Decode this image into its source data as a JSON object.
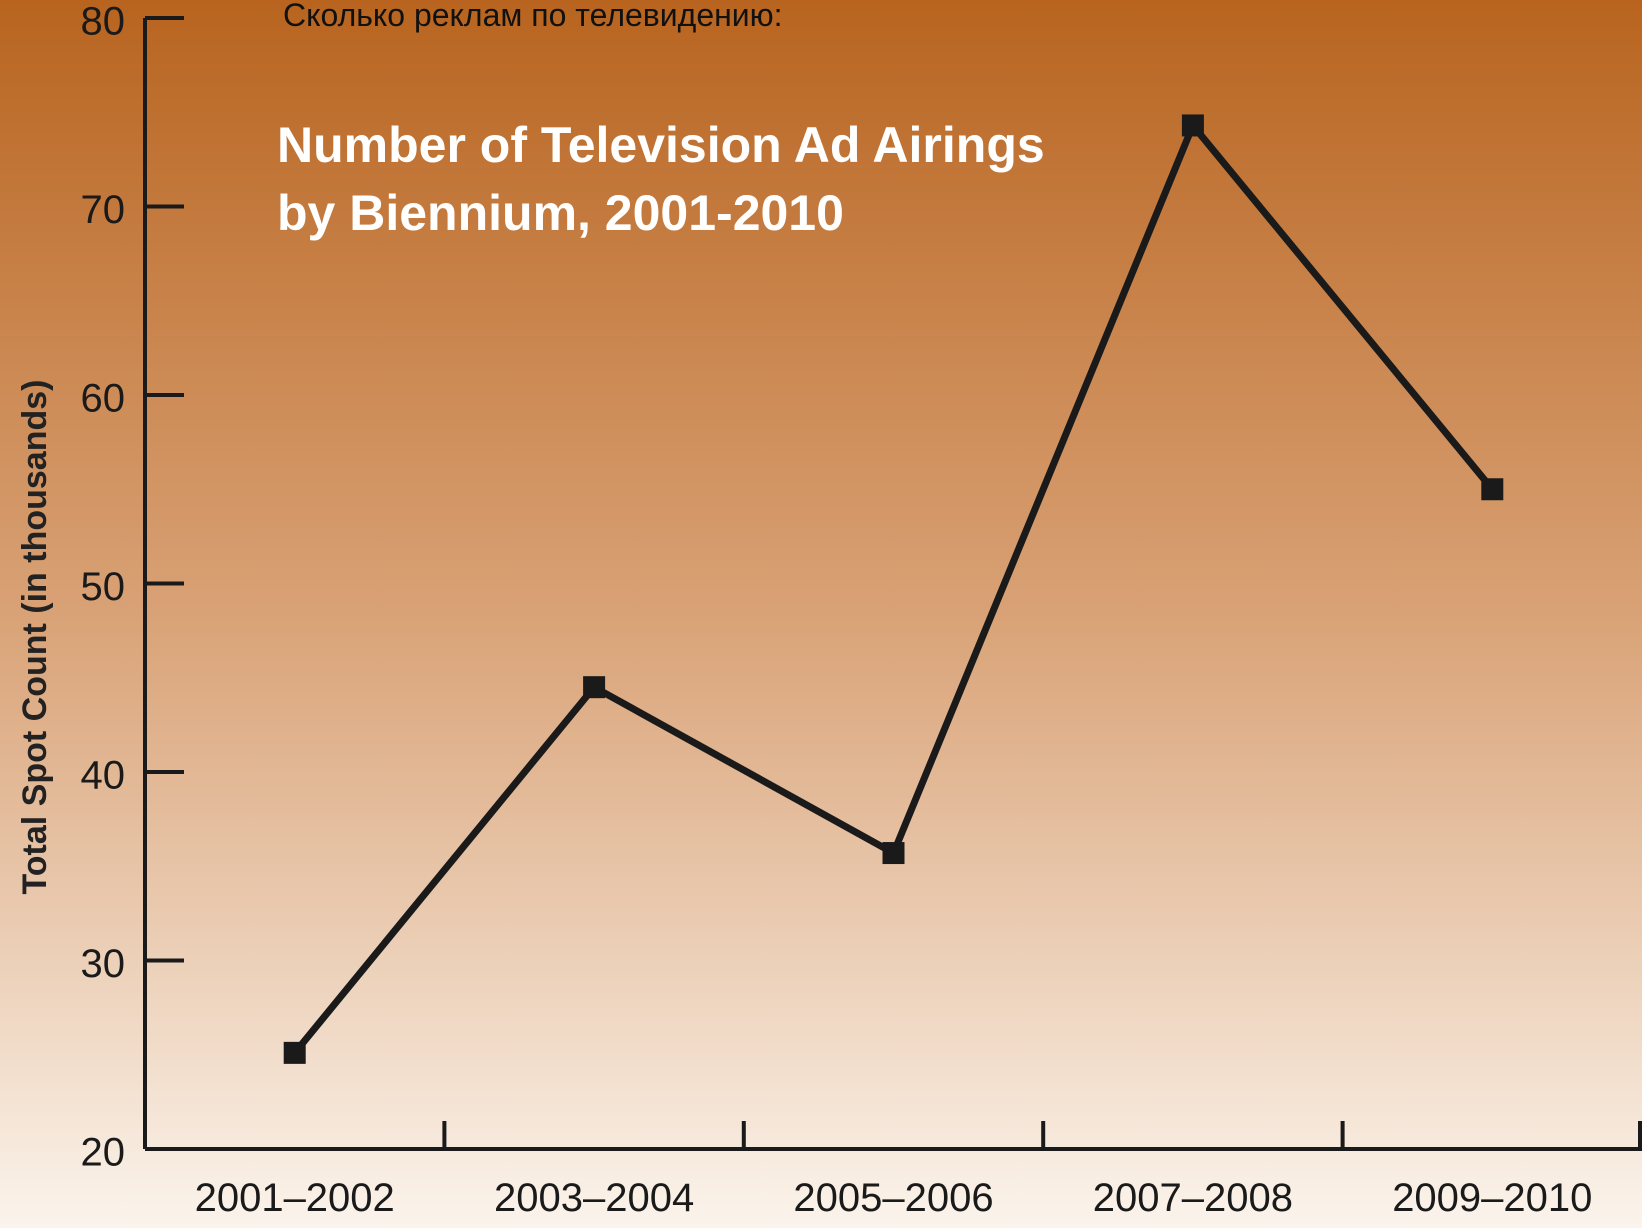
{
  "heading": "Сколько реклам по телевидению:",
  "chart_data": {
    "type": "line",
    "title": [
      "Number of Television Ad Airings",
      "by Biennium, 2001-2010"
    ],
    "y_label": "Total Spot Count (in thousands)",
    "categories": [
      "2001–2002",
      "2003–2004",
      "2005–2006",
      "2007–2008",
      "2009–2010"
    ],
    "values": [
      25.1,
      44.5,
      35.7,
      74.3,
      55
    ],
    "color": "#1a1a1a",
    "ylim": [
      20,
      80
    ],
    "yticks": [
      20,
      30,
      40,
      50,
      60,
      70,
      80
    ],
    "grid": false
  }
}
